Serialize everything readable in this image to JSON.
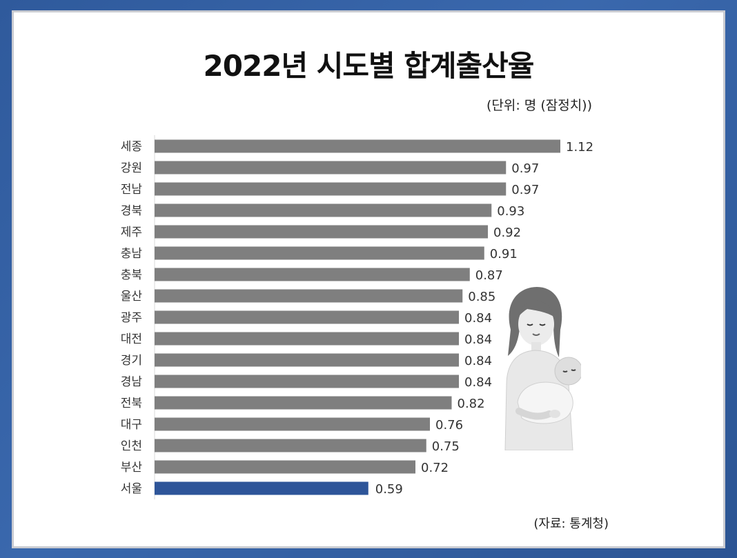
{
  "title": "2022년 시도별 합계출산율",
  "unit_note": "(단위: 명 (잠정치))",
  "source_note": "(자료:  통계청)",
  "colors": {
    "default_bar": "#7f7f7f",
    "highlight_bar": "#2e5599"
  },
  "chart_data": {
    "type": "bar",
    "orientation": "horizontal",
    "title": "2022년 시도별 합계출산율",
    "categories": [
      "세종",
      "강원",
      "전남",
      "경북",
      "제주",
      "충남",
      "충북",
      "울산",
      "광주",
      "대전",
      "경기",
      "경남",
      "전북",
      "대구",
      "인천",
      "부산",
      "서울"
    ],
    "values": [
      1.12,
      0.97,
      0.97,
      0.93,
      0.92,
      0.91,
      0.87,
      0.85,
      0.84,
      0.84,
      0.84,
      0.84,
      0.82,
      0.76,
      0.75,
      0.72,
      0.59
    ],
    "value_labels": [
      "1.12",
      "0.97",
      "0.97",
      "0.93",
      "0.92",
      "0.91",
      "0.87",
      "0.85",
      "0.84",
      "0.84",
      "0.84",
      "0.84",
      "0.82",
      "0.76",
      "0.75",
      "0.72",
      "0.59"
    ],
    "highlight": "서울",
    "xlabel": "",
    "ylabel": "",
    "grid": false,
    "legend": "none"
  }
}
